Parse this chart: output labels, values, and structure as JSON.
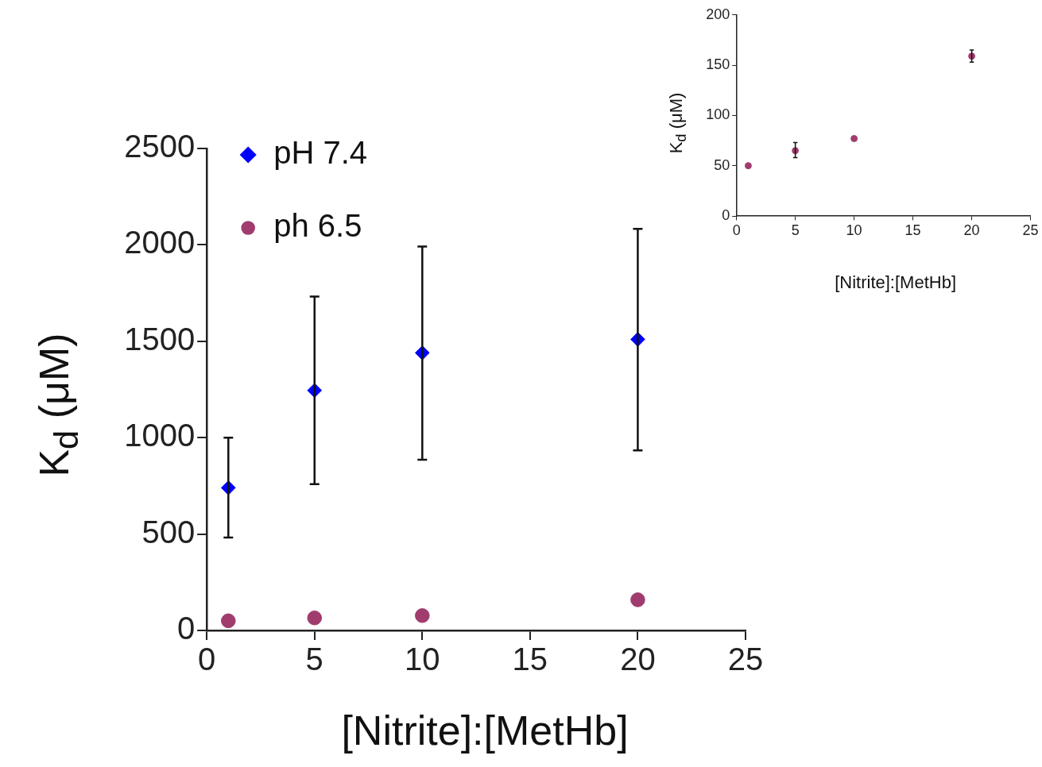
{
  "chart_data": [
    {
      "type": "scatter",
      "xlabel": "[Nitrite]:[MetHb]",
      "ylabel": "K$_{d}$ (μM)",
      "x": [
        1,
        5,
        10,
        20
      ],
      "xlim": [
        0,
        25
      ],
      "xticks": [
        0,
        5,
        10,
        15,
        20,
        25
      ],
      "ylim": [
        0,
        2500
      ],
      "yticks": [
        0,
        500,
        1000,
        1500,
        2000,
        2500
      ],
      "grid": false,
      "legend": "top left",
      "series": [
        {
          "name": "pH 7.4",
          "color": "#0000ff",
          "marker": "diamond",
          "values": [
            740,
            1245,
            1440,
            1510
          ],
          "errors": [
            [
              482,
              1000
            ],
            [
              759,
              1732
            ],
            [
              886,
              1991
            ],
            [
              934,
              2083
            ]
          ]
        },
        {
          "name": "ph 6.5",
          "color": "#a03c6e",
          "marker": "circle",
          "values": [
            50,
            65,
            77,
            159
          ]
        }
      ]
    },
    {
      "type": "scatter",
      "xlabel": "[Nitrite]:[MetHb]",
      "ylabel": "K$_{d}$ (μM)",
      "x": [
        1,
        5,
        10,
        20
      ],
      "xlim": [
        0,
        25
      ],
      "xticks": [
        0,
        5,
        10,
        15,
        20,
        25
      ],
      "ylim": [
        0,
        200
      ],
      "yticks": [
        0,
        50,
        100,
        150,
        200
      ],
      "grid": false,
      "series": [
        {
          "color": "#a03c6e",
          "marker": "circle",
          "values": [
            50,
            65,
            77,
            159
          ],
          "errors": [
            null,
            [
              58,
              73
            ],
            null,
            [
              153,
              165
            ]
          ]
        }
      ]
    }
  ]
}
